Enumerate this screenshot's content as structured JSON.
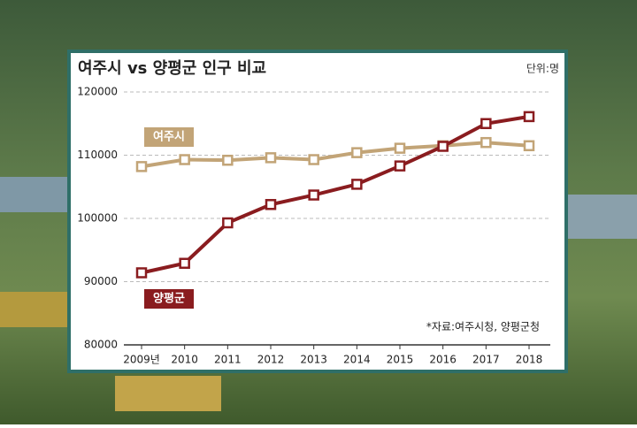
{
  "chart_data": {
    "type": "line",
    "title": "여주시 vs 양평군 인구 비교",
    "unit": "단위:명",
    "source": "*자료:여주시청, 양평군청",
    "categories": [
      "2009년",
      "2010",
      "2011",
      "2012",
      "2013",
      "2014",
      "2015",
      "2016",
      "2017",
      "2018"
    ],
    "series": [
      {
        "name": "여주시",
        "color": "#c2a477",
        "values": [
          108200,
          109300,
          109200,
          109600,
          109300,
          110400,
          111100,
          111500,
          112000,
          111500
        ]
      },
      {
        "name": "양평군",
        "color": "#8a1c1f",
        "values": [
          91400,
          92900,
          99300,
          102200,
          103700,
          105400,
          108300,
          111400,
          115000,
          116100
        ]
      }
    ],
    "ylim": [
      80000,
      120000
    ],
    "yticks": [
      80000,
      90000,
      100000,
      110000,
      120000
    ],
    "grid": true
  }
}
